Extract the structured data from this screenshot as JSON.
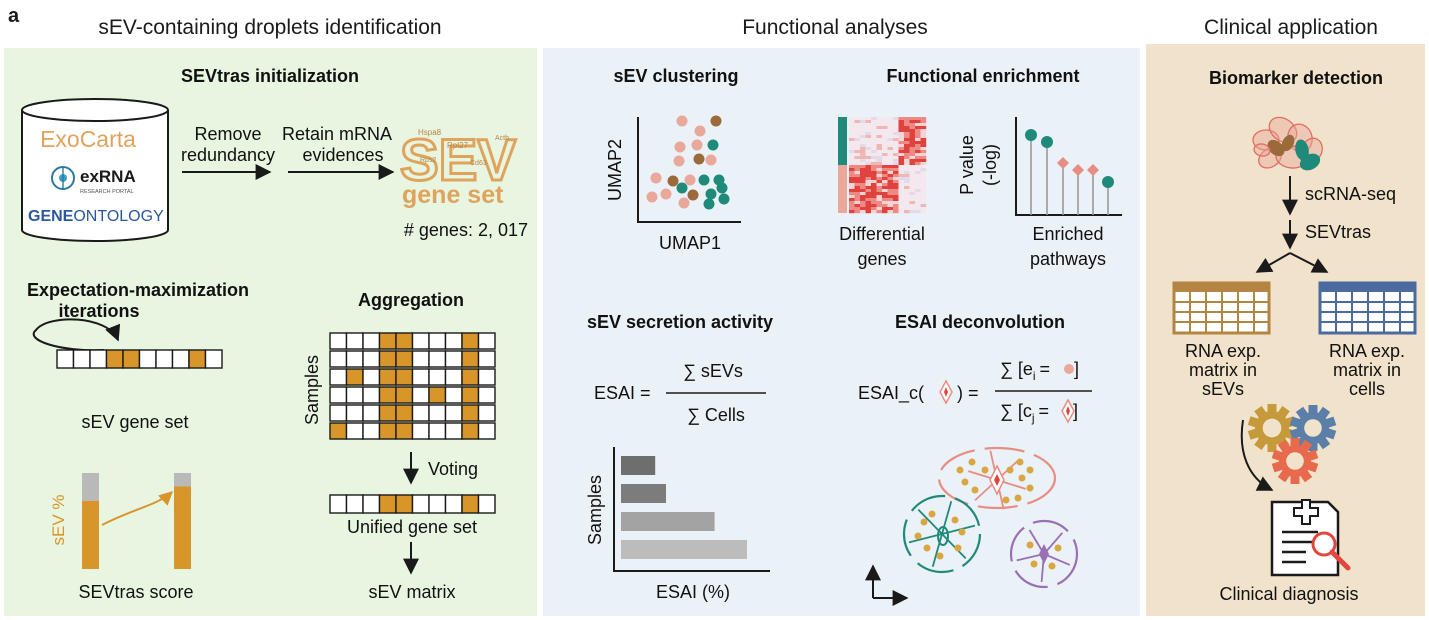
{
  "panel_letter": "a",
  "sections": {
    "left": "sEV-containing droplets identification",
    "middle": "Functional analyses",
    "right": "Clinical application"
  },
  "init": {
    "title": "SEVtras initialization",
    "db1": "ExoCarta",
    "db2": "exRNA",
    "db2_sub": "RESEARCH PORTAL",
    "db3a": "GENE",
    "db3b": "ONTOLOGY",
    "step1a": "Remove",
    "step1b": "redundancy",
    "step2a": "Retain mRNA",
    "step2b": "evidences",
    "sev_word": "SEV",
    "geneset_word": "gene set",
    "wc1": "Hspa8",
    "wc2": "Rpl27",
    "wc3": "Rps2",
    "wc4": "Cd63",
    "wc5": "Actb",
    "genes_count": "# genes: 2, 017"
  },
  "em": {
    "title_a": "Expectation-maximization",
    "title_b": "iterations",
    "gene_set_label": "sEV gene set",
    "yaxis": "sEV %",
    "score_label": "SEVtras score",
    "score_bars": [
      0.71,
      0.86
    ]
  },
  "agg": {
    "title": "Aggregation",
    "samples": "Samples",
    "voting": "Voting",
    "unified": "Unified gene set",
    "matrix": "sEV matrix"
  },
  "clustering": {
    "title": "sEV clustering",
    "ylabel": "UMAP2",
    "xlabel": "UMAP1"
  },
  "enrich": {
    "title": "Functional enrichment",
    "heat_a": "Differential",
    "heat_b": "genes",
    "ylabel_a": "P value",
    "ylabel_b": "(-log)",
    "path_a": "Enriched",
    "path_b": "pathways"
  },
  "secretion": {
    "title": "sEV secretion activity",
    "esai": "ESAI =",
    "numer": "∑ sEVs",
    "denom": "∑ Cells",
    "ylabel": "Samples",
    "xlabel": "ESAI (%)"
  },
  "chart_data": {
    "type": "bar",
    "orientation": "horizontal",
    "categories": [
      "",
      "",
      "",
      ""
    ],
    "values": [
      19,
      25,
      52,
      70
    ],
    "xlabel": "ESAI (%)",
    "ylabel": "Samples",
    "xlim": [
      0,
      100
    ]
  },
  "deconv": {
    "title": "ESAI deconvolution",
    "lhs_a": "ESAI_c(",
    "lhs_b": ") =",
    "numer_a": "∑ [e",
    "numer_sub": "i",
    "numer_b": "=",
    "numer_c": "]",
    "denom_a": "∑ [c",
    "denom_sub": "j",
    "denom_b": "=",
    "denom_c": "]"
  },
  "clinical": {
    "title": "Biomarker detection",
    "scrna": "scRNA-seq",
    "sevtras": "SEVtras",
    "m1a": "RNA exp.",
    "m1b": "matrix in",
    "m1c": "sEVs",
    "m2a": "RNA exp.",
    "m2b": "matrix in",
    "m2c": "cells",
    "diagnosis": "Clinical diagnosis"
  },
  "colors": {
    "green_bg": "#e7f5e1",
    "blue_bg": "#eaf1f7",
    "tan_bg": "#f1e2cb",
    "orange": "#d8962a",
    "teal": "#1f8a79",
    "salmon": "#e9a89a",
    "brown": "#9b6a3a",
    "red": "#e2473f",
    "purple": "#9a6fb3",
    "navy": "#4a6aa0"
  }
}
